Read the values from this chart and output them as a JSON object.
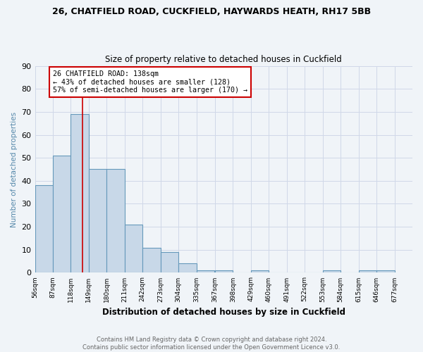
{
  "title1": "26, CHATFIELD ROAD, CUCKFIELD, HAYWARDS HEATH, RH17 5BB",
  "title2": "Size of property relative to detached houses in Cuckfield",
  "xlabel": "Distribution of detached houses by size in Cuckfield",
  "ylabel": "Number of detached properties",
  "footnote": "Contains HM Land Registry data © Crown copyright and database right 2024.\nContains public sector information licensed under the Open Government Licence v3.0.",
  "bin_edges": [
    56,
    87,
    118,
    149,
    180,
    211,
    242,
    273,
    304,
    335,
    367,
    398,
    429,
    460,
    491,
    522,
    553,
    584,
    615,
    646,
    677
  ],
  "bar_heights": [
    38,
    51,
    69,
    45,
    45,
    21,
    11,
    9,
    4,
    1,
    1,
    0,
    1,
    0,
    0,
    0,
    1,
    0,
    1,
    1
  ],
  "bar_color": "#c8d8e8",
  "bar_edge_color": "#6699bb",
  "property_size": 138,
  "red_line_color": "#cc0000",
  "annotation_text": "26 CHATFIELD ROAD: 138sqm\n← 43% of detached houses are smaller (128)\n57% of semi-detached houses are larger (170) →",
  "annotation_box_color": "#ffffff",
  "annotation_box_edge": "#cc0000",
  "ylim": [
    0,
    90
  ],
  "yticks": [
    0,
    10,
    20,
    30,
    40,
    50,
    60,
    70,
    80,
    90
  ],
  "grid_color": "#d0d8e8",
  "bg_color": "#f0f4f8"
}
